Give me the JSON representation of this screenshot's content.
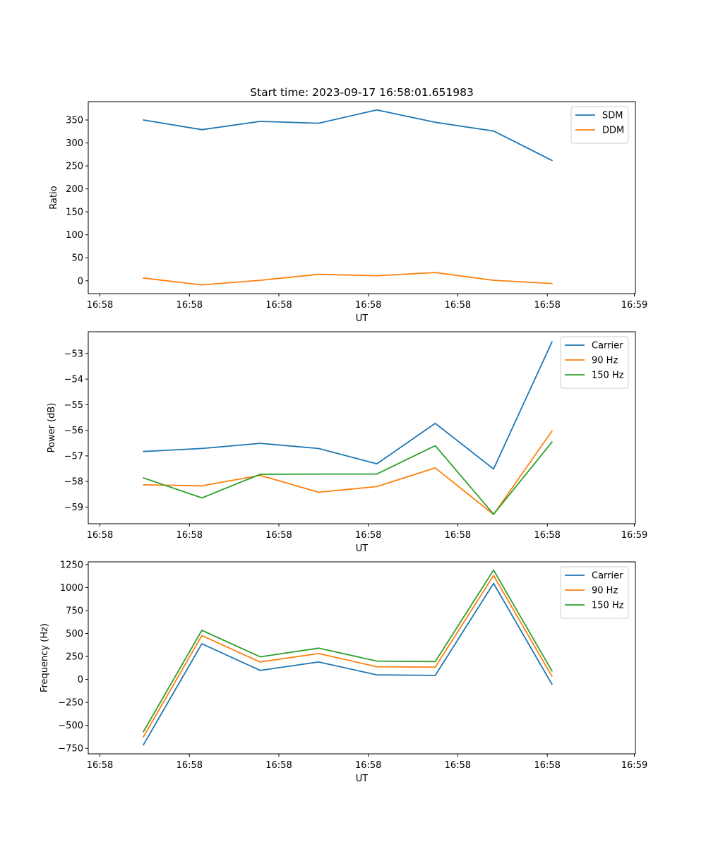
{
  "chart_data": [
    {
      "type": "line",
      "title": "Start time: 2023-09-17 16:58:01.651983",
      "xlabel": "UT",
      "ylabel": "Ratio",
      "x_ticks": [
        "16:58",
        "16:58",
        "16:58",
        "16:58",
        "16:58",
        "16:58",
        "16:59"
      ],
      "ylim": [
        -28,
        390
      ],
      "y_ticks": [
        0,
        50,
        100,
        150,
        200,
        250,
        300,
        350
      ],
      "y_tick_labels": [
        "0",
        "50",
        "100",
        "150",
        "200",
        "250",
        "300",
        "350"
      ],
      "legend_position": "top-right",
      "series": [
        {
          "name": "SDM",
          "color": "#1f77b4",
          "values": [
            350,
            329,
            347,
            343,
            372,
            345,
            326,
            262
          ]
        },
        {
          "name": "DDM",
          "color": "#ff7f0e",
          "values": [
            6,
            -9,
            1,
            14,
            11,
            18,
            1,
            -6
          ]
        }
      ]
    },
    {
      "type": "line",
      "title": "",
      "xlabel": "UT",
      "ylabel": "Power (dB)",
      "x_ticks": [
        "16:58",
        "16:58",
        "16:58",
        "16:58",
        "16:58",
        "16:58",
        "16:59"
      ],
      "ylim": [
        -59.65,
        -52.15
      ],
      "y_ticks": [
        -59,
        -58,
        -57,
        -56,
        -55,
        -54,
        -53
      ],
      "y_tick_labels": [
        "−59",
        "−58",
        "−57",
        "−56",
        "−55",
        "−54",
        "−53"
      ],
      "legend_position": "top-right",
      "series": [
        {
          "name": "Carrier",
          "color": "#1f77b4",
          "values": [
            -56.83,
            -56.71,
            -56.51,
            -56.71,
            -57.31,
            -55.73,
            -57.51,
            -52.55
          ]
        },
        {
          "name": "90 Hz",
          "color": "#ff7f0e",
          "values": [
            -58.13,
            -58.17,
            -57.76,
            -58.42,
            -58.2,
            -57.47,
            -59.29,
            -56.03
          ]
        },
        {
          "name": "150 Hz",
          "color": "#2ca02c",
          "values": [
            -57.86,
            -58.64,
            -57.72,
            -57.71,
            -57.71,
            -56.6,
            -59.28,
            -56.46
          ]
        }
      ]
    },
    {
      "type": "line",
      "title": "",
      "xlabel": "UT",
      "ylabel": "Frequency (Hz)",
      "x_ticks": [
        "16:58",
        "16:58",
        "16:58",
        "16:58",
        "16:58",
        "16:58",
        "16:59"
      ],
      "ylim": [
        -810,
        1280
      ],
      "y_ticks": [
        -750,
        -500,
        -250,
        0,
        250,
        500,
        750,
        1000,
        1250
      ],
      "y_tick_labels": [
        "−750",
        "−500",
        "−250",
        "0",
        "250",
        "500",
        "750",
        "1000",
        "1250"
      ],
      "legend_position": "top-right",
      "series": [
        {
          "name": "Carrier",
          "color": "#1f77b4",
          "values": [
            -712,
            388,
            98,
            190,
            50,
            44,
            1046,
            -52
          ]
        },
        {
          "name": "90 Hz",
          "color": "#ff7f0e",
          "values": [
            -625,
            478,
            190,
            282,
            138,
            134,
            1132,
            34
          ]
        },
        {
          "name": "150 Hz",
          "color": "#2ca02c",
          "values": [
            -568,
            535,
            246,
            340,
            200,
            194,
            1190,
            92
          ]
        }
      ]
    }
  ]
}
